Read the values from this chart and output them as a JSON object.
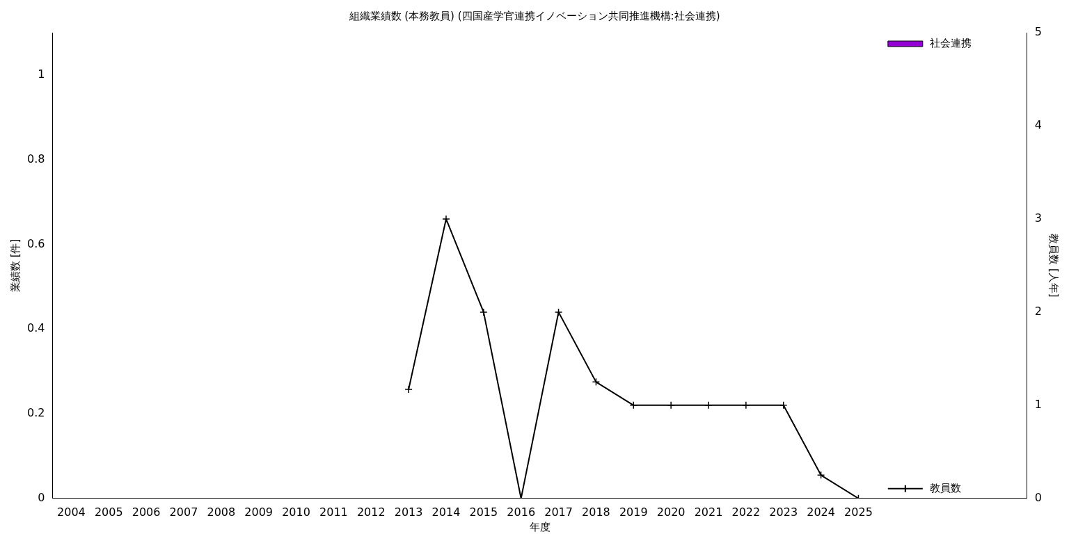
{
  "chart_data": {
    "type": "bar",
    "title": "組織業績数 (本務教員) (四国産学官連携イノベーション共同推進機構:社会連携)",
    "xlabel": "年度",
    "ylabel": "業績数 [件]",
    "y2label": "教員数 [人年]",
    "categories": [
      "2004",
      "2005",
      "2006",
      "2007",
      "2008",
      "2009",
      "2010",
      "2011",
      "2012",
      "2013",
      "2014",
      "2015",
      "2016",
      "2017",
      "2018",
      "2019",
      "2020",
      "2021",
      "2022",
      "2023",
      "2024",
      "2025",
      null,
      null,
      null,
      null
    ],
    "series": [
      {
        "name": "社会連携",
        "color": "#9400d3",
        "values": [
          0,
          0,
          0,
          0,
          0,
          0,
          0,
          0,
          0,
          0,
          0,
          0,
          0,
          0,
          0,
          0,
          0,
          0,
          0,
          0,
          0,
          0,
          null,
          null,
          null,
          null
        ]
      },
      {
        "name": "教員数",
        "type": "line",
        "axis": "y2",
        "color": "#000000",
        "marker": "cross",
        "values": [
          null,
          null,
          null,
          null,
          null,
          null,
          null,
          null,
          null,
          1.17,
          3,
          2,
          0,
          2,
          1.25,
          1,
          1,
          1,
          1,
          1,
          0.25,
          0,
          null,
          null,
          null,
          null
        ]
      }
    ],
    "ylim": [
      0,
      1.1
    ],
    "yticks": [
      0,
      0.2,
      0.4,
      0.6,
      0.8,
      1
    ],
    "y2lim": [
      0,
      5
    ],
    "y2ticks": [
      0,
      1,
      2,
      3,
      4,
      5
    ],
    "grid": false,
    "legend": "right"
  }
}
